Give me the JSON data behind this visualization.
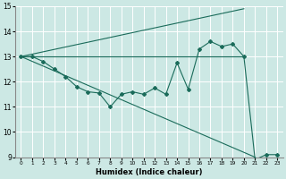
{
  "xlabel": "Humidex (Indice chaleur)",
  "background_color": "#cce8e4",
  "grid_color": "#ffffff",
  "line_color": "#1a6b5a",
  "xlim": [
    -0.5,
    23.5
  ],
  "ylim": [
    9,
    15
  ],
  "xtick_labels": [
    "0",
    "1",
    "2",
    "3",
    "4",
    "5",
    "6",
    "7",
    "8",
    "9",
    "10",
    "11",
    "12",
    "13",
    "14",
    "15",
    "16",
    "17",
    "18",
    "19",
    "20",
    "21",
    "22",
    "23"
  ],
  "xtick_vals": [
    0,
    1,
    2,
    3,
    4,
    5,
    6,
    7,
    8,
    9,
    10,
    11,
    12,
    13,
    14,
    15,
    16,
    17,
    18,
    19,
    20,
    21,
    22,
    23
  ],
  "ytick_vals": [
    9,
    10,
    11,
    12,
    13,
    14,
    15
  ],
  "main_x": [
    0,
    1,
    2,
    3,
    4,
    5,
    6,
    7,
    8,
    9,
    10,
    11,
    12,
    13,
    14,
    15,
    16,
    17,
    18,
    19,
    20,
    21,
    22,
    23
  ],
  "main_y": [
    13,
    13,
    12.8,
    12.5,
    12.2,
    11.8,
    11.6,
    11.55,
    11.0,
    11.5,
    11.6,
    11.5,
    11.75,
    11.5,
    12.75,
    11.7,
    13.3,
    13.6,
    13.4,
    13.5,
    13.0,
    8.9,
    9.1,
    9.1
  ],
  "fan_line1_x": [
    0,
    20
  ],
  "fan_line1_y": [
    13,
    13
  ],
  "fan_line2_x": [
    0,
    21
  ],
  "fan_line2_y": [
    13,
    9.0
  ],
  "fan_line3_x": [
    0,
    20
  ],
  "fan_line3_y": [
    13,
    14.9
  ]
}
